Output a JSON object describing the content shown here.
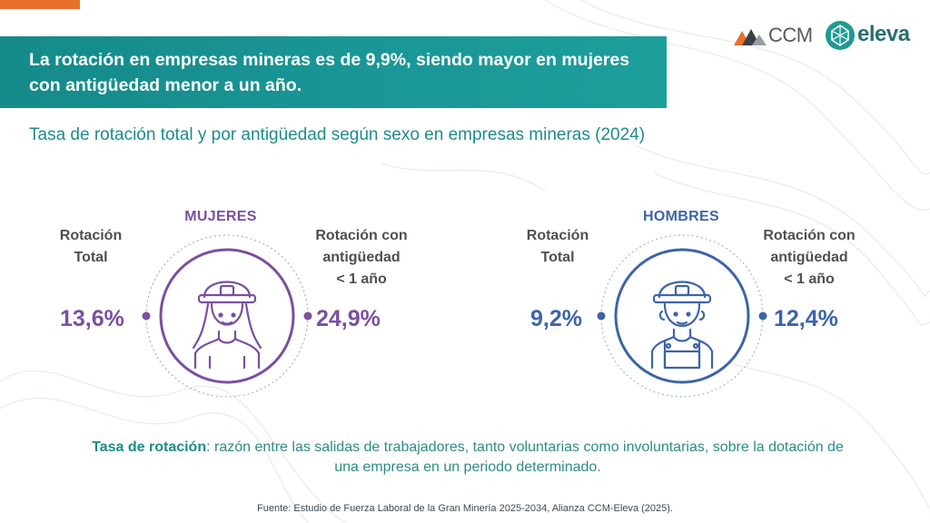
{
  "headline": "La rotación en empresas mineras es de 9,9%, siendo mayor en mujeres con antigüedad menor a un año.",
  "subtitle": "Tasa de rotación total y por antigüedad según sexo en empresas mineras (2024)",
  "logos": {
    "ccm": "CCM",
    "eleva": "eleva"
  },
  "colors": {
    "women": "#7a4fa0",
    "men": "#3d64a8",
    "teal": "#1d8c8c",
    "accent": "#e8702a"
  },
  "women": {
    "title": "MUJERES",
    "total_label": [
      "Rotación",
      "Total"
    ],
    "total_value": "13,6%",
    "tenure_label": [
      "Rotación con",
      "antigüedad",
      "< 1 año"
    ],
    "tenure_value": "24,9%",
    "icon": "female-miner-icon"
  },
  "men": {
    "title": "HOMBRES",
    "total_label": [
      "Rotación",
      "Total"
    ],
    "total_value": "9,2%",
    "tenure_label": [
      "Rotación con",
      "antigüedad",
      "< 1 año"
    ],
    "tenure_value": "12,4%",
    "icon": "male-miner-icon"
  },
  "definition": {
    "term": "Tasa de rotación",
    "text": ": razón entre las salidas de trabajadores, tanto voluntarias como involuntarias, sobre la dotación de una empresa en un periodo determinado."
  },
  "source": "Fuente: Estudio de Fuerza Laboral de la Gran Minería 2025-2034, Alianza CCM-Eleva (2025)."
}
